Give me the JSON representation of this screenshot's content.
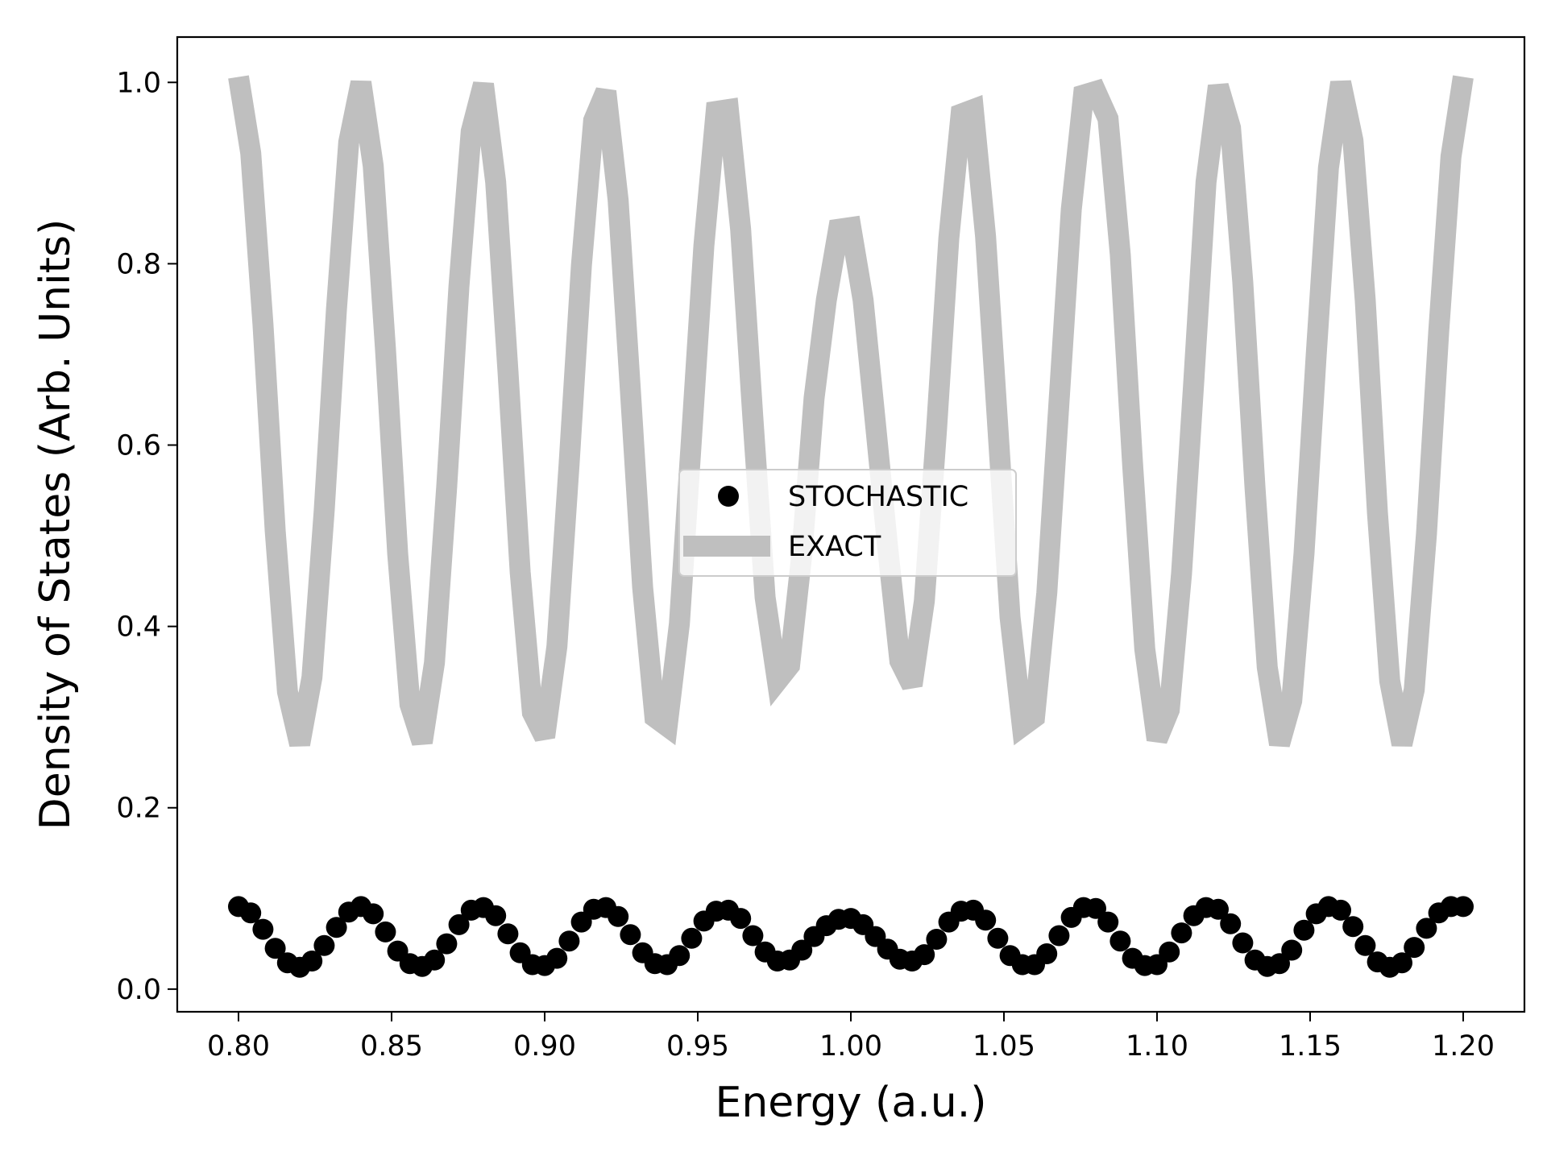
{
  "chart_data": {
    "type": "line",
    "xlabel": "Energy (a.u.)",
    "ylabel": "Density of States (Arb. Units)",
    "xlim": [
      0.78,
      1.22
    ],
    "ylim": [
      -0.025,
      1.05
    ],
    "xticks": [
      0.8,
      0.85,
      0.9,
      0.95,
      1.0,
      1.05,
      1.1,
      1.15,
      1.2
    ],
    "xtick_labels": [
      "0.80",
      "0.85",
      "0.90",
      "0.95",
      "1.00",
      "1.05",
      "1.10",
      "1.15",
      "1.20"
    ],
    "yticks": [
      0.0,
      0.2,
      0.4,
      0.6,
      0.8,
      1.0
    ],
    "ytick_labels": [
      "0.0",
      "0.2",
      "0.4",
      "0.6",
      "0.8",
      "1.0"
    ],
    "grid": false,
    "legend": "center",
    "series": [
      {
        "name": "STOCHASTIC",
        "style": "markers",
        "color": "#000000",
        "x": [
          0.8,
          0.804,
          0.808,
          0.812,
          0.816,
          0.82,
          0.824,
          0.828,
          0.832,
          0.836,
          0.84,
          0.844,
          0.848,
          0.852,
          0.856,
          0.86,
          0.864,
          0.868,
          0.872,
          0.876,
          0.88,
          0.884,
          0.888,
          0.892,
          0.896,
          0.9,
          0.904,
          0.908,
          0.912,
          0.916,
          0.92,
          0.924,
          0.928,
          0.932,
          0.936,
          0.94,
          0.944,
          0.948,
          0.952,
          0.956,
          0.96,
          0.964,
          0.968,
          0.972,
          0.976,
          0.98,
          0.984,
          0.988,
          0.992,
          0.996,
          1.0,
          1.004,
          1.008,
          1.012,
          1.016,
          1.02,
          1.024,
          1.028,
          1.032,
          1.036,
          1.04,
          1.044,
          1.048,
          1.052,
          1.056,
          1.06,
          1.064,
          1.068,
          1.072,
          1.076,
          1.08,
          1.084,
          1.088,
          1.092,
          1.096,
          1.1,
          1.104,
          1.108,
          1.112,
          1.116,
          1.12,
          1.124,
          1.128,
          1.132,
          1.136,
          1.14,
          1.144,
          1.148,
          1.152,
          1.156,
          1.16,
          1.164,
          1.168,
          1.172,
          1.176,
          1.18,
          1.184,
          1.188,
          1.192,
          1.196,
          1.2
        ],
        "y": [
          0.091,
          0.084,
          0.066,
          0.045,
          0.029,
          0.024,
          0.031,
          0.048,
          0.068,
          0.085,
          0.091,
          0.083,
          0.063,
          0.042,
          0.028,
          0.025,
          0.032,
          0.05,
          0.071,
          0.087,
          0.09,
          0.081,
          0.061,
          0.04,
          0.027,
          0.026,
          0.034,
          0.053,
          0.074,
          0.088,
          0.09,
          0.08,
          0.06,
          0.04,
          0.028,
          0.027,
          0.037,
          0.056,
          0.075,
          0.086,
          0.087,
          0.078,
          0.059,
          0.041,
          0.031,
          0.032,
          0.043,
          0.058,
          0.07,
          0.077,
          0.078,
          0.071,
          0.058,
          0.044,
          0.033,
          0.031,
          0.038,
          0.055,
          0.074,
          0.086,
          0.087,
          0.076,
          0.056,
          0.037,
          0.027,
          0.027,
          0.039,
          0.059,
          0.079,
          0.09,
          0.089,
          0.074,
          0.053,
          0.034,
          0.026,
          0.027,
          0.041,
          0.062,
          0.081,
          0.09,
          0.088,
          0.072,
          0.051,
          0.032,
          0.025,
          0.028,
          0.043,
          0.065,
          0.083,
          0.091,
          0.087,
          0.069,
          0.048,
          0.03,
          0.024,
          0.029,
          0.046,
          0.067,
          0.084,
          0.091,
          0.091
        ]
      },
      {
        "name": "EXACT",
        "style": "line",
        "color": "#bfbfbf",
        "x": [
          0.8,
          0.804,
          0.808,
          0.812,
          0.816,
          0.82,
          0.824,
          0.828,
          0.832,
          0.836,
          0.84,
          0.844,
          0.848,
          0.852,
          0.856,
          0.86,
          0.864,
          0.868,
          0.872,
          0.876,
          0.88,
          0.884,
          0.888,
          0.892,
          0.896,
          0.9,
          0.904,
          0.908,
          0.912,
          0.916,
          0.92,
          0.924,
          0.928,
          0.932,
          0.936,
          0.94,
          0.944,
          0.948,
          0.952,
          0.956,
          0.96,
          0.964,
          0.968,
          0.972,
          0.976,
          0.98,
          0.984,
          0.988,
          0.992,
          0.996,
          1.0,
          1.004,
          1.008,
          1.012,
          1.016,
          1.02,
          1.024,
          1.028,
          1.032,
          1.036,
          1.04,
          1.044,
          1.048,
          1.052,
          1.056,
          1.06,
          1.064,
          1.068,
          1.072,
          1.076,
          1.08,
          1.084,
          1.088,
          1.092,
          1.096,
          1.1,
          1.104,
          1.108,
          1.112,
          1.116,
          1.12,
          1.124,
          1.128,
          1.132,
          1.136,
          1.14,
          1.144,
          1.148,
          1.152,
          1.156,
          1.16,
          1.164,
          1.168,
          1.172,
          1.176,
          1.18,
          1.184,
          1.188,
          1.192,
          1.196,
          1.2
        ],
        "y": [
          1.006,
          0.922,
          0.733,
          0.505,
          0.328,
          0.27,
          0.344,
          0.528,
          0.75,
          0.934,
          1.0,
          0.908,
          0.706,
          0.48,
          0.314,
          0.272,
          0.36,
          0.554,
          0.775,
          0.946,
          0.998,
          0.89,
          0.682,
          0.46,
          0.305,
          0.278,
          0.378,
          0.58,
          0.798,
          0.958,
          0.99,
          0.87,
          0.66,
          0.443,
          0.3,
          0.29,
          0.403,
          0.61,
          0.82,
          0.968,
          0.97,
          0.838,
          0.63,
          0.432,
          0.34,
          0.357,
          0.48,
          0.652,
          0.76,
          0.838,
          0.84,
          0.76,
          0.625,
          0.488,
          0.362,
          0.335,
          0.428,
          0.618,
          0.828,
          0.965,
          0.97,
          0.83,
          0.62,
          0.41,
          0.29,
          0.3,
          0.437,
          0.648,
          0.86,
          0.986,
          0.99,
          0.96,
          0.81,
          0.58,
          0.375,
          0.275,
          0.308,
          0.458,
          0.67,
          0.89,
          0.996,
          0.95,
          0.78,
          0.553,
          0.355,
          0.27,
          0.318,
          0.48,
          0.7,
          0.906,
          1.0,
          0.936,
          0.76,
          0.525,
          0.34,
          0.27,
          0.33,
          0.502,
          0.725,
          0.918,
          1.006
        ]
      }
    ]
  }
}
